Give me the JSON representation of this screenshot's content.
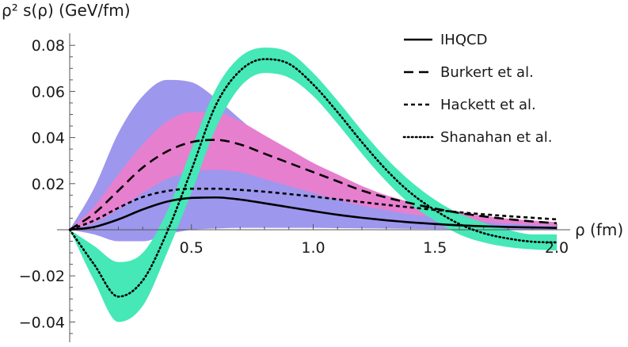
{
  "chart_data": {
    "type": "line",
    "title": "",
    "ylabel": "ρ² s(ρ) (GeV/fm)",
    "xlabel": "ρ (fm)",
    "xlim": [
      0,
      2.0
    ],
    "ylim": [
      -0.046,
      0.084
    ],
    "x_ticks": [
      0.5,
      1.0,
      1.5,
      2.0
    ],
    "x_tick_labels": [
      "0.5",
      "1.0",
      "1.5",
      "2.0"
    ],
    "y_ticks": [
      -0.04,
      -0.02,
      0.02,
      0.04,
      0.06,
      0.08
    ],
    "y_tick_labels": [
      "−0.04",
      "−0.02",
      "0.02",
      "0.04",
      "0.06",
      "0.08"
    ],
    "legend_position": "top-right",
    "x": [
      0.0,
      0.1,
      0.2,
      0.3,
      0.4,
      0.5,
      0.6,
      0.7,
      0.8,
      0.9,
      1.0,
      1.1,
      1.2,
      1.3,
      1.4,
      1.5,
      1.6,
      1.7,
      1.8,
      1.9,
      2.0
    ],
    "bands": [
      {
        "name": "Burkert et al. outer uncertainty",
        "color": "#9e97ee",
        "upper": [
          0.0,
          0.018,
          0.042,
          0.058,
          0.065,
          0.064,
          0.057,
          0.048,
          0.039,
          0.031,
          0.024,
          0.019,
          0.015,
          0.012,
          0.0095,
          0.0075,
          0.006,
          0.0048,
          0.004,
          0.0033,
          0.0028
        ],
        "lower": [
          0.0,
          -0.002,
          -0.005,
          -0.005,
          -0.002,
          0.0,
          0.0005,
          0.0008,
          0.0008,
          0.0008,
          0.0008,
          0.0007,
          0.0006,
          0.0005,
          0.0004,
          0.0003,
          0.0002,
          0.0002,
          0.0001,
          0.0001,
          0.0001
        ]
      },
      {
        "name": "Burkert et al. inner uncertainty",
        "color": "#e77fcf",
        "upper": [
          0.0,
          0.01,
          0.024,
          0.037,
          0.047,
          0.051,
          0.051,
          0.047,
          0.041,
          0.035,
          0.029,
          0.024,
          0.019,
          0.015,
          0.012,
          0.0095,
          0.0075,
          0.006,
          0.0048,
          0.004,
          0.0033
        ],
        "lower": [
          0.0,
          0.003,
          0.009,
          0.016,
          0.022,
          0.025,
          0.026,
          0.025,
          0.022,
          0.019,
          0.016,
          0.013,
          0.0105,
          0.0085,
          0.0067,
          0.0053,
          0.0042,
          0.0033,
          0.0026,
          0.002,
          0.0016
        ]
      },
      {
        "name": "Shanahan et al. uncertainty",
        "color": "#45e8b6",
        "upper": [
          0.0,
          -0.007,
          -0.014,
          -0.01,
          0.008,
          0.035,
          0.061,
          0.075,
          0.079,
          0.077,
          0.068,
          0.056,
          0.043,
          0.031,
          0.021,
          0.013,
          0.007,
          0.003,
          0.0,
          -0.002,
          -0.002
        ],
        "lower": [
          0.0,
          -0.022,
          -0.04,
          -0.033,
          -0.01,
          0.016,
          0.044,
          0.062,
          0.068,
          0.066,
          0.058,
          0.046,
          0.033,
          0.021,
          0.011,
          0.004,
          -0.002,
          -0.0055,
          -0.0075,
          -0.0085,
          -0.009
        ]
      }
    ],
    "series": [
      {
        "name": "IHQCD",
        "style": "solid",
        "values": [
          0.0,
          0.0012,
          0.0045,
          0.0088,
          0.0122,
          0.0138,
          0.014,
          0.0131,
          0.0115,
          0.0098,
          0.0081,
          0.0065,
          0.0052,
          0.0041,
          0.0032,
          0.0025,
          0.0019,
          0.0015,
          0.0012,
          0.001,
          0.0008
        ]
      },
      {
        "name": "Burkert et al.",
        "style": "dashed",
        "values": [
          0.0,
          0.007,
          0.017,
          0.027,
          0.034,
          0.038,
          0.039,
          0.037,
          0.033,
          0.029,
          0.025,
          0.021,
          0.017,
          0.014,
          0.0115,
          0.0092,
          0.0073,
          0.0058,
          0.0046,
          0.0036,
          0.0028
        ]
      },
      {
        "name": "Hackett et al.",
        "style": "short-dashed",
        "values": [
          0.0,
          0.004,
          0.0095,
          0.0142,
          0.0168,
          0.0178,
          0.0178,
          0.0173,
          0.0165,
          0.0155,
          0.0144,
          0.0132,
          0.012,
          0.0108,
          0.0097,
          0.0086,
          0.0076,
          0.0067,
          0.0059,
          0.0052,
          0.0045
        ]
      },
      {
        "name": "Shanahan et al.",
        "style": "dotted",
        "values": [
          0.0,
          -0.015,
          -0.029,
          -0.022,
          -0.001,
          0.026,
          0.054,
          0.069,
          0.074,
          0.072,
          0.063,
          0.051,
          0.038,
          0.026,
          0.016,
          0.0085,
          0.0025,
          -0.0015,
          -0.0038,
          -0.0052,
          -0.0055
        ]
      }
    ]
  }
}
